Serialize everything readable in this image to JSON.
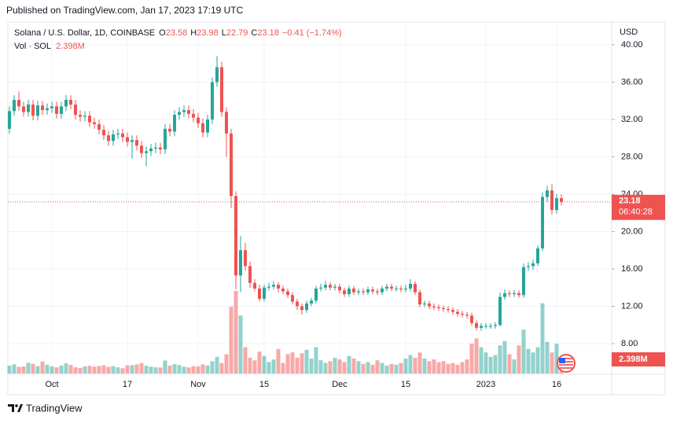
{
  "published": "Published on TradingView.com, Jan 17, 2023 17:19 UTC",
  "footer": "TradingView",
  "chart_data": {
    "type": "candlestick",
    "title": "Solana / U.S. Dollar, 1D, COINBASE",
    "ohlc_labels": [
      "O",
      "H",
      "L",
      "C"
    ],
    "change": "−0.41 (−1.74%)",
    "volume_title": "Vol · SOL",
    "volume_label": "2.398M",
    "currency": "USD",
    "countdown": "06:40:28",
    "up_color": "#26a69a",
    "down_color": "#ef5350",
    "grid": true,
    "ylim": [
      4.8,
      42.1
    ],
    "yticks": [
      {
        "value": 40,
        "label": "40.00"
      },
      {
        "value": 36,
        "label": "36.00"
      },
      {
        "value": 32,
        "label": "32.00"
      },
      {
        "value": 28,
        "label": "28.00"
      },
      {
        "value": 24,
        "label": "24.00"
      },
      {
        "value": 20,
        "label": "20.00"
      },
      {
        "value": 16,
        "label": "16.00"
      },
      {
        "value": 12,
        "label": "12.00"
      },
      {
        "value": 8,
        "label": "8.00"
      }
    ],
    "categories": [
      null,
      null,
      null,
      null,
      null,
      null,
      null,
      null,
      null,
      "Oct",
      null,
      null,
      null,
      null,
      null,
      null,
      null,
      null,
      null,
      null,
      null,
      null,
      null,
      null,
      null,
      "17",
      null,
      null,
      null,
      null,
      null,
      null,
      null,
      null,
      null,
      null,
      null,
      null,
      null,
      null,
      "Nov",
      null,
      null,
      null,
      null,
      null,
      null,
      null,
      null,
      null,
      null,
      null,
      null,
      null,
      "15",
      null,
      null,
      null,
      null,
      null,
      null,
      null,
      null,
      null,
      null,
      null,
      null,
      null,
      null,
      null,
      "Dec",
      null,
      null,
      null,
      null,
      null,
      null,
      null,
      null,
      null,
      null,
      null,
      null,
      null,
      "15",
      null,
      null,
      null,
      null,
      null,
      null,
      null,
      null,
      null,
      null,
      null,
      null,
      null,
      null,
      null,
      null,
      "2023",
      null,
      null,
      null,
      null,
      null,
      null,
      null,
      null,
      null,
      null,
      null,
      null,
      null,
      null,
      "16",
      null
    ],
    "open": [
      31.0,
      32.9,
      34.1,
      33.4,
      32.8,
      33.6,
      32.4,
      33.5,
      33.0,
      33.2,
      33.4,
      32.6,
      33.4,
      34.1,
      33.6,
      32.5,
      32.3,
      32.4,
      31.7,
      31.5,
      30.9,
      30.3,
      29.7,
      30.4,
      30.5,
      30.1,
      29.6,
      29.8,
      29.2,
      28.4,
      28.6,
      28.9,
      29.0,
      28.8,
      31.0,
      30.7,
      32.5,
      32.8,
      33.0,
      32.6,
      32.2,
      31.6,
      30.6,
      32.0,
      36.0,
      37.6,
      32.8,
      30.5,
      23.8,
      15.3,
      18.0,
      16.3,
      14.5,
      13.9,
      12.8,
      14.0,
      14.1,
      14.3,
      13.9,
      13.6,
      13.2,
      12.5,
      12.0,
      11.6,
      12.3,
      12.6,
      13.9,
      14.0,
      14.3,
      14.0,
      14.1,
      13.7,
      13.3,
      13.9,
      13.5,
      13.6,
      13.5,
      13.8,
      13.6,
      13.5,
      13.9,
      14.1,
      13.9,
      13.9,
      13.8,
      13.9,
      14.4,
      13.5,
      12.2,
      12.3,
      12.0,
      11.9,
      11.8,
      11.7,
      11.6,
      11.4,
      11.2,
      11.1,
      11.0,
      10.2,
      9.7,
      9.9,
      9.9,
      9.9,
      10.0,
      13.0,
      13.4,
      13.3,
      13.4,
      13.2,
      16.2,
      16.3,
      16.6,
      18.2,
      23.7,
      24.4,
      22.3,
      23.58
    ],
    "high": [
      33.4,
      34.6,
      35.0,
      33.9,
      34.1,
      34.1,
      34.0,
      34.0,
      33.7,
      33.9,
      33.9,
      33.9,
      34.6,
      34.6,
      34.1,
      33.0,
      32.9,
      32.9,
      32.2,
      32.0,
      31.4,
      30.8,
      30.9,
      31.0,
      31.0,
      30.6,
      30.3,
      30.3,
      29.7,
      29.1,
      29.4,
      29.5,
      29.5,
      31.5,
      31.5,
      33.0,
      33.3,
      33.5,
      33.5,
      33.1,
      32.7,
      32.1,
      32.5,
      36.5,
      38.8,
      38.2,
      33.3,
      31.0,
      24.3,
      19.5,
      18.8,
      16.8,
      14.9,
      14.3,
      14.3,
      14.5,
      14.7,
      14.6,
      14.2,
      13.9,
      13.5,
      12.8,
      12.3,
      12.6,
      12.9,
      14.2,
      14.4,
      14.7,
      14.6,
      14.4,
      14.4,
      14.0,
      14.2,
      14.2,
      13.9,
      13.9,
      14.1,
      14.1,
      13.9,
      14.2,
      14.4,
      14.4,
      14.2,
      14.2,
      14.3,
      14.9,
      14.7,
      13.8,
      12.6,
      12.6,
      12.3,
      12.2,
      12.1,
      12.0,
      11.9,
      11.7,
      11.5,
      11.4,
      11.3,
      10.5,
      10.2,
      10.2,
      10.2,
      10.3,
      13.5,
      13.8,
      13.7,
      13.7,
      13.7,
      16.6,
      16.7,
      17.0,
      18.5,
      24.2,
      24.9,
      25.1,
      24.0,
      23.98
    ],
    "low": [
      30.5,
      32.4,
      32.9,
      32.3,
      32.3,
      31.9,
      31.9,
      32.5,
      32.5,
      32.7,
      32.1,
      32.1,
      32.9,
      33.1,
      32.0,
      31.8,
      31.8,
      31.2,
      31.0,
      30.4,
      29.8,
      29.2,
      29.2,
      29.9,
      29.6,
      29.1,
      27.8,
      28.7,
      27.9,
      27.0,
      28.1,
      28.4,
      28.3,
      28.3,
      30.2,
      30.2,
      32.0,
      32.3,
      32.1,
      31.7,
      31.1,
      30.1,
      30.1,
      31.5,
      35.5,
      32.3,
      28.0,
      22.5,
      13.8,
      13.5,
      15.8,
      14.0,
      13.6,
      12.5,
      12.5,
      13.7,
      13.8,
      13.5,
      13.3,
      12.9,
      12.2,
      11.6,
      11.1,
      11.3,
      12.0,
      12.3,
      13.6,
      13.7,
      13.7,
      13.7,
      13.4,
      13.0,
      13.0,
      13.2,
      13.2,
      13.2,
      13.2,
      13.3,
      13.2,
      13.2,
      13.6,
      13.6,
      13.6,
      13.5,
      13.5,
      13.6,
      13.2,
      11.9,
      11.9,
      11.7,
      11.6,
      11.5,
      11.4,
      11.3,
      11.1,
      10.9,
      10.8,
      10.7,
      9.9,
      9.4,
      9.4,
      9.6,
      9.6,
      9.6,
      9.8,
      12.7,
      13.0,
      13.0,
      12.9,
      12.9,
      15.8,
      15.9,
      16.3,
      17.9,
      23.2,
      21.8,
      21.9,
      22.79
    ],
    "close": [
      32.9,
      34.1,
      33.4,
      32.8,
      33.6,
      32.4,
      33.5,
      33.0,
      33.2,
      33.4,
      32.6,
      33.4,
      34.1,
      33.6,
      32.5,
      32.3,
      32.4,
      31.7,
      31.5,
      30.9,
      30.3,
      29.7,
      30.4,
      30.5,
      30.1,
      29.6,
      29.8,
      29.2,
      28.4,
      28.6,
      28.9,
      29.0,
      28.8,
      31.0,
      30.7,
      32.5,
      32.8,
      33.0,
      32.6,
      32.2,
      31.6,
      30.6,
      32.0,
      36.0,
      37.6,
      32.8,
      30.5,
      23.8,
      15.3,
      18.0,
      16.3,
      14.5,
      13.9,
      12.8,
      14.0,
      14.1,
      14.3,
      13.9,
      13.6,
      13.2,
      12.5,
      12.0,
      11.6,
      12.3,
      12.6,
      13.9,
      14.0,
      14.3,
      14.0,
      14.1,
      13.7,
      13.3,
      13.9,
      13.5,
      13.6,
      13.5,
      13.8,
      13.6,
      13.5,
      13.9,
      14.1,
      13.9,
      13.9,
      13.8,
      13.9,
      14.4,
      13.5,
      12.2,
      12.3,
      12.0,
      11.9,
      11.8,
      11.7,
      11.6,
      11.4,
      11.2,
      11.1,
      11.0,
      10.2,
      9.7,
      9.9,
      9.9,
      9.9,
      10.0,
      13.0,
      13.4,
      13.3,
      13.4,
      13.2,
      16.2,
      16.3,
      16.6,
      18.2,
      23.7,
      24.4,
      22.3,
      23.58,
      23.18
    ],
    "volume": [
      4.5,
      5.2,
      3.8,
      4.0,
      6.1,
      5.5,
      4.2,
      6.8,
      5.0,
      4.1,
      3.5,
      4.6,
      5.8,
      4.9,
      3.6,
      3.2,
      4.0,
      4.4,
      3.9,
      4.3,
      4.7,
      3.8,
      4.2,
      3.5,
      3.0,
      4.6,
      4.8,
      5.2,
      6.0,
      4.4,
      3.9,
      3.6,
      3.4,
      7.4,
      4.5,
      5.3,
      4.8,
      3.9,
      3.5,
      4.2,
      4.0,
      5.2,
      4.6,
      7.0,
      9.5,
      6.0,
      11.0,
      38.0,
      47.0,
      33.0,
      15.0,
      9.0,
      7.5,
      12.5,
      10.0,
      6.5,
      8.0,
      14.0,
      6.0,
      11.0,
      12.0,
      9.0,
      11.5,
      13.5,
      8.5,
      15.0,
      7.5,
      6.0,
      7.0,
      9.0,
      8.0,
      6.5,
      10.0,
      8.5,
      7.0,
      5.5,
      6.5,
      5.0,
      7.5,
      6.0,
      4.5,
      5.5,
      5.0,
      6.0,
      8.5,
      10.5,
      9.0,
      12.0,
      8.5,
      7.0,
      8.0,
      6.5,
      7.0,
      5.5,
      6.0,
      5.0,
      6.5,
      8.0,
      17.0,
      20.0,
      15.0,
      12.0,
      9.5,
      10.5,
      16.0,
      18.5,
      11.0,
      8.0,
      16.0,
      25.0,
      14.0,
      12.0,
      15.0,
      40.0,
      18.0,
      12.0,
      17.0,
      2.398
    ]
  }
}
